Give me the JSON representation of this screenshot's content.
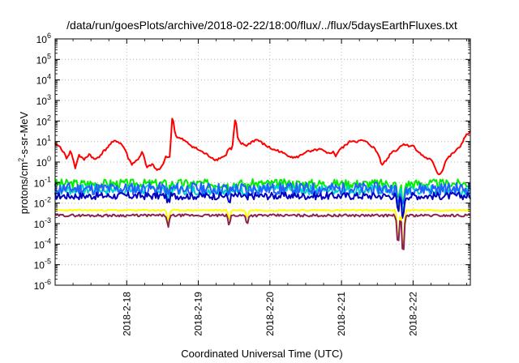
{
  "chart_data": {
    "type": "line",
    "title": "/data/run/goesPlots/archive/2018-02-22/18:00/flux/../flux/5daysEarthFluxes.txt",
    "xlabel": "Coordinated Universal Time (UTC)",
    "ylabel_parts": {
      "pre": "protons/cm",
      "sup": "2",
      "post": "-s-sr-MeV"
    },
    "yscale": "log",
    "ylim_exp": [
      -6,
      6
    ],
    "y_tick_labels": [
      {
        "base": "10",
        "exp": "-6",
        "value_exp": -6
      },
      {
        "base": "10",
        "exp": "-5",
        "value_exp": -5
      },
      {
        "base": "10",
        "exp": "-4",
        "value_exp": -4
      },
      {
        "base": "10",
        "exp": "-3",
        "value_exp": -3
      },
      {
        "base": "10",
        "exp": "-2",
        "value_exp": -2
      },
      {
        "base": "10",
        "exp": "-1",
        "value_exp": -1
      },
      {
        "base": "10",
        "exp": "0",
        "value_exp": 0
      },
      {
        "base": "10",
        "exp": "1",
        "value_exp": 1
      },
      {
        "base": "10",
        "exp": "2",
        "value_exp": 2
      },
      {
        "base": "10",
        "exp": "3",
        "value_exp": 3
      },
      {
        "base": "10",
        "exp": "4",
        "value_exp": 4
      },
      {
        "base": "10",
        "exp": "5",
        "value_exp": 5
      },
      {
        "base": "10",
        "exp": "6",
        "value_exp": 6
      }
    ],
    "xlim_days": [
      0,
      5.8
    ],
    "x_ticks": [
      {
        "label": "2018-2-18",
        "day": 1.0
      },
      {
        "label": "2018-2-19",
        "day": 2.0
      },
      {
        "label": "2018-2-20",
        "day": 3.0
      },
      {
        "label": "2018-2-21",
        "day": 4.0
      },
      {
        "label": "2018-2-22",
        "day": 5.0
      }
    ],
    "grid": true,
    "legend": "none",
    "series": [
      {
        "color": "#ff0000",
        "kind": "main"
      },
      {
        "color": "#00ee00",
        "kind": "noisy",
        "base_exp": -1.05,
        "amp": 0.22,
        "seed": 3
      },
      {
        "color": "#00d0c8",
        "kind": "noisy",
        "base_exp": -1.35,
        "amp": 0.25,
        "seed": 7
      },
      {
        "color": "#2060ff",
        "kind": "noisy",
        "base_exp": -1.3,
        "amp": 0.3,
        "seed": 11
      },
      {
        "color": "#0000c0",
        "kind": "noisy",
        "base_exp": -1.65,
        "amp": 0.18,
        "seed": 17
      },
      {
        "color": "#ffff00",
        "kind": "flat",
        "base_exp": -2.35,
        "amp": 0.04,
        "seed": 23
      },
      {
        "color": "#8b2252",
        "kind": "flat",
        "base_exp": -2.6,
        "amp": 0.06,
        "seed": 29
      }
    ],
    "red_keypoints": [
      [
        0.0,
        0.9
      ],
      [
        0.08,
        0.7
      ],
      [
        0.16,
        0.2
      ],
      [
        0.22,
        0.55
      ],
      [
        0.28,
        -0.3
      ],
      [
        0.33,
        0.35
      ],
      [
        0.4,
        0.1
      ],
      [
        0.48,
        0.4
      ],
      [
        0.55,
        0.1
      ],
      [
        0.62,
        0.3
      ],
      [
        0.7,
        0.6
      ],
      [
        0.78,
        0.9
      ],
      [
        0.85,
        1.05
      ],
      [
        0.92,
        0.9
      ],
      [
        0.98,
        0.6
      ],
      [
        1.02,
        0.2
      ],
      [
        1.07,
        -0.1
      ],
      [
        1.15,
        0.1
      ],
      [
        1.22,
        0.5
      ],
      [
        1.28,
        -0.3
      ],
      [
        1.35,
        -0.1
      ],
      [
        1.42,
        -0.4
      ],
      [
        1.48,
        -0.3
      ],
      [
        1.55,
        0.3
      ],
      [
        1.6,
        0.2
      ],
      [
        1.64,
        2.4
      ],
      [
        1.67,
        1.5
      ],
      [
        1.7,
        1.2
      ],
      [
        1.78,
        1.1
      ],
      [
        1.86,
        0.9
      ],
      [
        1.95,
        0.7
      ],
      [
        2.05,
        0.5
      ],
      [
        2.15,
        0.3
      ],
      [
        2.25,
        0.1
      ],
      [
        2.3,
        0.2
      ],
      [
        2.38,
        0.3
      ],
      [
        2.43,
        0.7
      ],
      [
        2.47,
        0.55
      ],
      [
        2.52,
        2.25
      ],
      [
        2.55,
        1.1
      ],
      [
        2.6,
        0.9
      ],
      [
        2.68,
        0.8
      ],
      [
        2.75,
        1.0
      ],
      [
        2.82,
        1.1
      ],
      [
        2.9,
        0.9
      ],
      [
        2.97,
        0.75
      ],
      [
        3.05,
        0.6
      ],
      [
        3.12,
        0.55
      ],
      [
        3.2,
        0.4
      ],
      [
        3.28,
        0.3
      ],
      [
        3.35,
        0.2
      ],
      [
        3.42,
        0.3
      ],
      [
        3.5,
        0.5
      ],
      [
        3.58,
        0.5
      ],
      [
        3.65,
        0.6
      ],
      [
        3.72,
        0.6
      ],
      [
        3.8,
        0.4
      ],
      [
        3.88,
        0.5
      ],
      [
        3.92,
        0.3
      ],
      [
        3.97,
        0.6
      ],
      [
        4.02,
        0.7
      ],
      [
        4.08,
        0.9
      ],
      [
        4.15,
        1.05
      ],
      [
        4.22,
        1.0
      ],
      [
        4.3,
        1.05
      ],
      [
        4.38,
        0.9
      ],
      [
        4.45,
        0.7
      ],
      [
        4.52,
        0.35
      ],
      [
        4.56,
        -0.1
      ],
      [
        4.62,
        0.05
      ],
      [
        4.7,
        0.5
      ],
      [
        4.78,
        0.6
      ],
      [
        4.86,
        0.9
      ],
      [
        4.92,
        0.8
      ],
      [
        5.0,
        0.8
      ],
      [
        5.05,
        0.6
      ],
      [
        5.1,
        0.4
      ],
      [
        5.18,
        0.2
      ],
      [
        5.25,
        0.1
      ],
      [
        5.3,
        -0.2
      ],
      [
        5.35,
        -0.6
      ],
      [
        5.4,
        -0.5
      ],
      [
        5.46,
        0.1
      ],
      [
        5.52,
        0.3
      ],
      [
        5.58,
        0.5
      ],
      [
        5.65,
        0.7
      ],
      [
        5.72,
        1.2
      ],
      [
        5.8,
        1.5
      ]
    ],
    "dips": [
      {
        "day": 1.58,
        "depth": 0.6
      },
      {
        "day": 2.43,
        "depth": 0.45
      },
      {
        "day": 2.68,
        "depth": 0.4
      },
      {
        "day": 4.79,
        "depth": 1.5
      },
      {
        "day": 4.86,
        "depth": 2.0
      }
    ]
  }
}
